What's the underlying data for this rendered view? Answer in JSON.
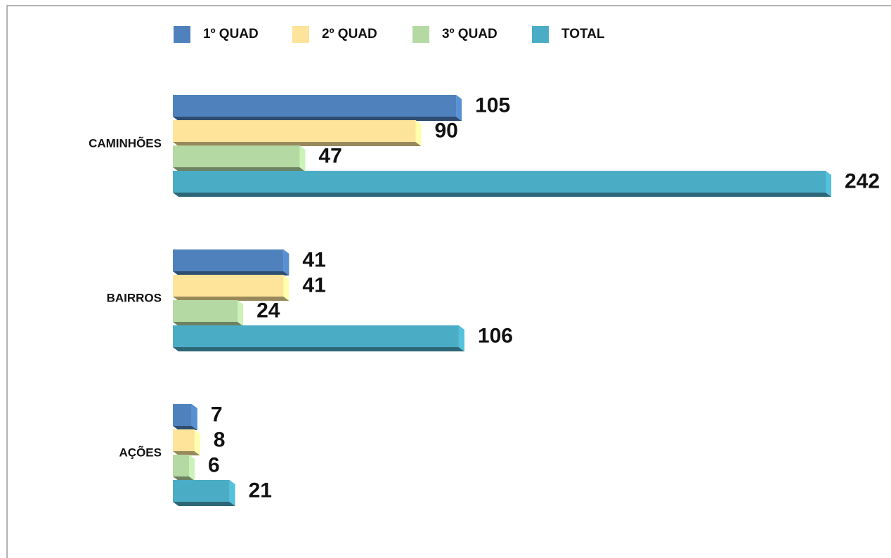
{
  "chart_data": {
    "type": "bar",
    "orientation": "horizontal",
    "categories": [
      "CAMINHÕES",
      "BAIRROS",
      "AÇÕES"
    ],
    "series": [
      {
        "name": "1º QUAD",
        "color": "#4f81bd",
        "values": [
          105,
          41,
          7
        ]
      },
      {
        "name": "2º QUAD",
        "color": "#fde49a",
        "values": [
          90,
          41,
          8
        ]
      },
      {
        "name": "3º QUAD",
        "color": "#b5d9a3",
        "values": [
          47,
          24,
          6
        ]
      },
      {
        "name": "TOTAL",
        "color": "#4bacc6",
        "values": [
          242,
          106,
          21
        ]
      }
    ],
    "legend": "top"
  }
}
